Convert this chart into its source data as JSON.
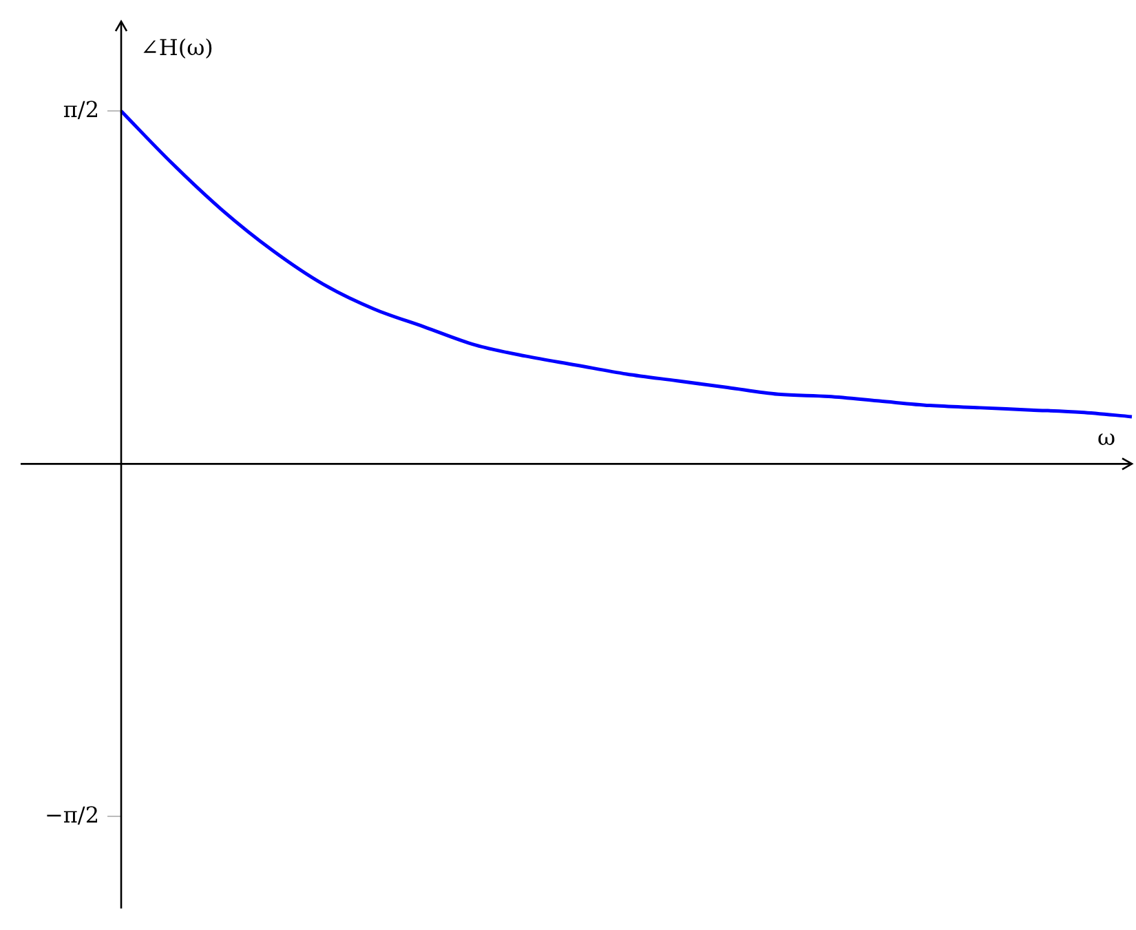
{
  "chart_data": {
    "type": "line",
    "xlabel": "ω",
    "ylabel": "∠H(ω)",
    "categories": [
      null,
      null,
      null,
      null,
      null,
      null,
      null,
      null,
      null,
      null,
      null,
      null,
      null,
      null,
      null,
      null,
      null,
      null,
      null,
      null,
      null
    ],
    "series": [
      {
        "color": "#0000ff",
        "values": [
          1.571,
          1.34,
          1.13,
          0.95,
          0.8,
          0.69,
          0.61,
          0.53,
          0.48,
          0.44,
          0.4,
          0.37,
          0.34,
          0.31,
          0.3,
          0.28,
          0.26,
          0.25,
          0.24,
          0.23,
          0.21
        ]
      }
    ],
    "ylim": [
      -1.98,
      1.97
    ],
    "yticks": [
      {
        "value": -1.5708,
        "label": "−π/2"
      },
      {
        "value": 1.5708,
        "label": "π/2"
      }
    ],
    "grid": false,
    "legend": false,
    "marker": "none",
    "line_style": "solid"
  }
}
